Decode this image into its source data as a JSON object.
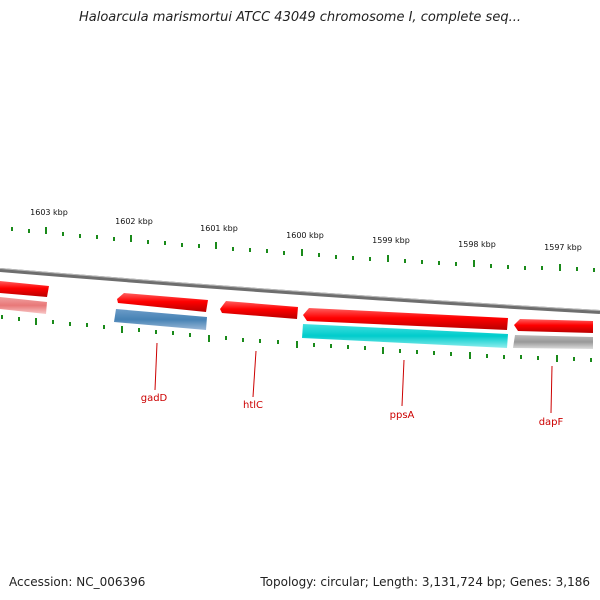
{
  "title": "Haloarcula marismortui ATCC 43049 chromosome I, complete seq...",
  "footer": {
    "accession": "Accession: NC_006396",
    "summary": "Topology: circular; Length: 3,131,724 bp; Genes: 3,186"
  },
  "ticks": [
    {
      "label": "1603 kbp"
    },
    {
      "label": "1602 kbp"
    },
    {
      "label": "1601 kbp"
    },
    {
      "label": "1600 kbp"
    },
    {
      "label": "1599 kbp"
    },
    {
      "label": "1598 kbp"
    },
    {
      "label": "1597 kbp"
    }
  ],
  "gene_labels": [
    "gadD",
    "htlC",
    "ppsA",
    "dapF"
  ],
  "colors": {
    "forward_gene": "#ff0000",
    "blue_feature": "#4682b4",
    "cyan_feature": "#00cccc",
    "gray_feature": "#aaaaaa",
    "pink_feature": "#e87878",
    "backbone": "#808080",
    "ticks": "#1a8a1a",
    "label_color": "#cc0000"
  }
}
